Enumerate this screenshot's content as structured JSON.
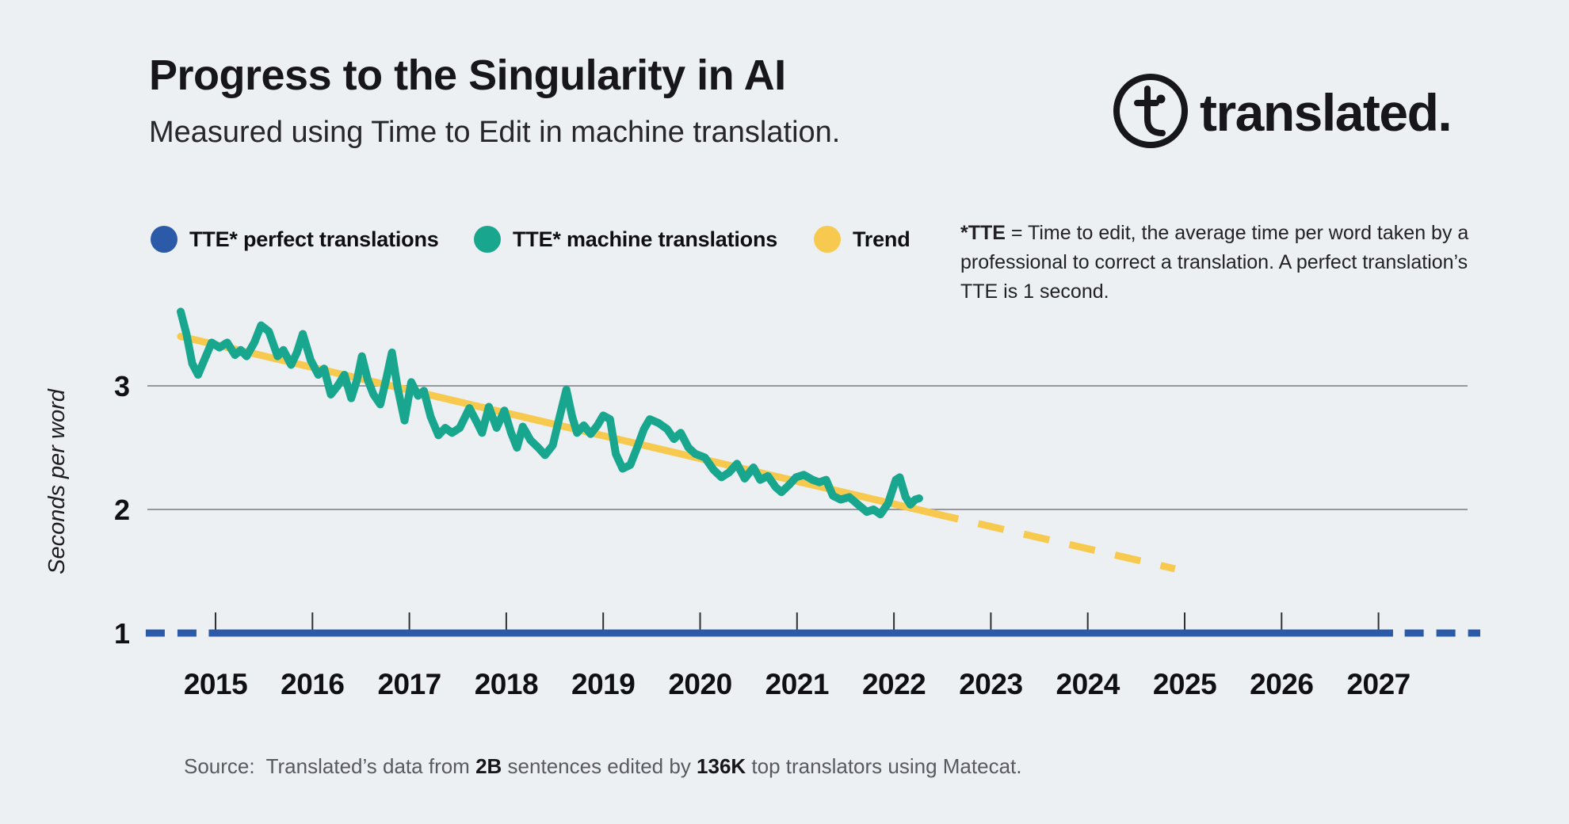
{
  "header": {
    "title": "Progress to the Singularity in AI",
    "subtitle": "Measured using Time to Edit in machine translation."
  },
  "brand": {
    "wordmark": "translated.",
    "logo_icon": "circled-t-with-dot"
  },
  "legend": {
    "items": [
      {
        "label": "TTE* perfect translations",
        "color": "#2a5aa8",
        "swatch": "circle"
      },
      {
        "label": "TTE* machine translations",
        "color": "#18a78e",
        "swatch": "circle"
      },
      {
        "label": "Trend",
        "color": "#f7c94e",
        "swatch": "circle"
      }
    ]
  },
  "note": {
    "bold_lead": "*TTE",
    "text": " = Time to edit, the average time per word taken by a professional to correct a translation. A perfect translation’s TTE is 1 second."
  },
  "source": {
    "label": "Source:",
    "parts": [
      {
        "text": "Translated’s data from ",
        "bold": false
      },
      {
        "text": "2B",
        "bold": true
      },
      {
        "text": " sentences edited by ",
        "bold": false
      },
      {
        "text": "136K",
        "bold": true
      },
      {
        "text": " top translators using Matecat.",
        "bold": false
      }
    ]
  },
  "chart_data": {
    "type": "line",
    "title": "Progress to the Singularity in AI",
    "xlabel": "",
    "ylabel": "Seconds per word",
    "x_ticks": [
      2015,
      2016,
      2017,
      2018,
      2019,
      2020,
      2021,
      2022,
      2023,
      2024,
      2025,
      2026,
      2027
    ],
    "yticks": [
      1,
      2,
      3
    ],
    "grid_y": [
      2,
      3
    ],
    "xlim": [
      2014.2,
      2028.1
    ],
    "ylim": [
      0.8,
      3.8
    ],
    "grid_color": "#96989b",
    "tick_color": "#303034",
    "series": [
      {
        "name": "TTE* perfect translations",
        "color": "#2a5aa8",
        "style": "constant",
        "value": 1.0,
        "dash_before": [
          2014.28,
          2014.86
        ],
        "solid": [
          2014.93,
          2027.15
        ],
        "dash_after": [
          2027.27,
          2028.05
        ]
      },
      {
        "name": "TTE* machine translations",
        "color": "#18a78e",
        "style": "line",
        "points": [
          [
            2014.64,
            3.6
          ],
          [
            2014.7,
            3.42
          ],
          [
            2014.76,
            3.18
          ],
          [
            2014.82,
            3.09
          ],
          [
            2014.89,
            3.22
          ],
          [
            2014.96,
            3.35
          ],
          [
            2015.04,
            3.31
          ],
          [
            2015.12,
            3.35
          ],
          [
            2015.2,
            3.25
          ],
          [
            2015.26,
            3.29
          ],
          [
            2015.32,
            3.24
          ],
          [
            2015.4,
            3.35
          ],
          [
            2015.47,
            3.49
          ],
          [
            2015.55,
            3.44
          ],
          [
            2015.64,
            3.24
          ],
          [
            2015.7,
            3.29
          ],
          [
            2015.78,
            3.17
          ],
          [
            2015.84,
            3.27
          ],
          [
            2015.9,
            3.42
          ],
          [
            2015.98,
            3.21
          ],
          [
            2016.06,
            3.09
          ],
          [
            2016.12,
            3.14
          ],
          [
            2016.19,
            2.93
          ],
          [
            2016.26,
            3.0
          ],
          [
            2016.33,
            3.09
          ],
          [
            2016.4,
            2.9
          ],
          [
            2016.46,
            3.05
          ],
          [
            2016.51,
            3.24
          ],
          [
            2016.57,
            3.05
          ],
          [
            2016.63,
            2.93
          ],
          [
            2016.7,
            2.85
          ],
          [
            2016.76,
            3.05
          ],
          [
            2016.82,
            3.27
          ],
          [
            2016.88,
            2.98
          ],
          [
            2016.95,
            2.72
          ],
          [
            2017.02,
            3.03
          ],
          [
            2017.09,
            2.92
          ],
          [
            2017.15,
            2.96
          ],
          [
            2017.22,
            2.75
          ],
          [
            2017.3,
            2.6
          ],
          [
            2017.37,
            2.66
          ],
          [
            2017.44,
            2.62
          ],
          [
            2017.52,
            2.66
          ],
          [
            2017.62,
            2.82
          ],
          [
            2017.7,
            2.7
          ],
          [
            2017.75,
            2.62
          ],
          [
            2017.82,
            2.83
          ],
          [
            2017.9,
            2.66
          ],
          [
            2017.98,
            2.8
          ],
          [
            2018.05,
            2.62
          ],
          [
            2018.11,
            2.5
          ],
          [
            2018.17,
            2.67
          ],
          [
            2018.25,
            2.56
          ],
          [
            2018.33,
            2.5
          ],
          [
            2018.4,
            2.44
          ],
          [
            2018.48,
            2.52
          ],
          [
            2018.55,
            2.75
          ],
          [
            2018.62,
            2.97
          ],
          [
            2018.68,
            2.75
          ],
          [
            2018.73,
            2.62
          ],
          [
            2018.8,
            2.68
          ],
          [
            2018.87,
            2.61
          ],
          [
            2018.94,
            2.68
          ],
          [
            2019.0,
            2.76
          ],
          [
            2019.07,
            2.73
          ],
          [
            2019.13,
            2.45
          ],
          [
            2019.2,
            2.33
          ],
          [
            2019.28,
            2.36
          ],
          [
            2019.35,
            2.5
          ],
          [
            2019.42,
            2.65
          ],
          [
            2019.48,
            2.73
          ],
          [
            2019.57,
            2.7
          ],
          [
            2019.66,
            2.65
          ],
          [
            2019.73,
            2.57
          ],
          [
            2019.8,
            2.62
          ],
          [
            2019.88,
            2.5
          ],
          [
            2019.95,
            2.45
          ],
          [
            2020.05,
            2.42
          ],
          [
            2020.14,
            2.32
          ],
          [
            2020.22,
            2.26
          ],
          [
            2020.3,
            2.3
          ],
          [
            2020.38,
            2.37
          ],
          [
            2020.46,
            2.25
          ],
          [
            2020.55,
            2.34
          ],
          [
            2020.62,
            2.24
          ],
          [
            2020.7,
            2.27
          ],
          [
            2020.78,
            2.18
          ],
          [
            2020.84,
            2.14
          ],
          [
            2020.92,
            2.2
          ],
          [
            2020.99,
            2.26
          ],
          [
            2021.07,
            2.28
          ],
          [
            2021.16,
            2.24
          ],
          [
            2021.23,
            2.22
          ],
          [
            2021.3,
            2.24
          ],
          [
            2021.37,
            2.11
          ],
          [
            2021.45,
            2.08
          ],
          [
            2021.54,
            2.1
          ],
          [
            2021.63,
            2.04
          ],
          [
            2021.72,
            1.98
          ],
          [
            2021.79,
            2.0
          ],
          [
            2021.86,
            1.96
          ],
          [
            2021.94,
            2.05
          ],
          [
            2022.02,
            2.24
          ],
          [
            2022.06,
            2.26
          ],
          [
            2022.12,
            2.1
          ],
          [
            2022.17,
            2.04
          ],
          [
            2022.22,
            2.08
          ],
          [
            2022.26,
            2.09
          ]
        ]
      },
      {
        "name": "Trend",
        "color": "#f7c94e",
        "style": "trend",
        "solid": [
          [
            2014.64,
            3.4
          ],
          [
            2022.4,
            1.97
          ]
        ],
        "dashed": [
          [
            2022.4,
            1.97
          ],
          [
            2024.9,
            1.52
          ]
        ]
      }
    ]
  }
}
